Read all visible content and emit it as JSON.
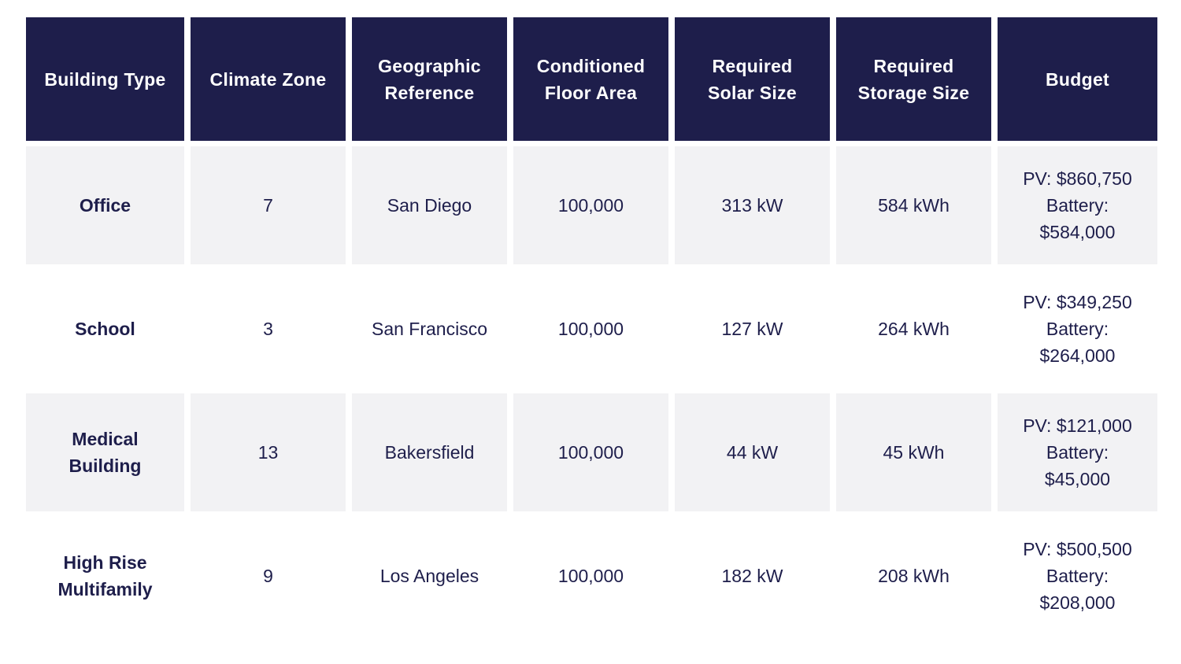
{
  "columns": [
    "Building Type",
    "Climate Zone",
    "Geographic\nReference",
    "Conditioned\nFloor Area",
    "Required\nSolar Size",
    "Required\nStorage Size",
    "Budget"
  ],
  "rows": [
    {
      "building_type": "Office",
      "climate_zone": "7",
      "geographic_reference": "San Diego",
      "floor_area": "100,000",
      "solar_size": "313 kW",
      "storage_size": "584 kWh",
      "budget": "PV: $860,750\nBattery:\n$584,000"
    },
    {
      "building_type": "School",
      "climate_zone": "3",
      "geographic_reference": "San Francisco",
      "floor_area": "100,000",
      "solar_size": "127 kW",
      "storage_size": "264 kWh",
      "budget": "PV: $349,250\nBattery:\n$264,000"
    },
    {
      "building_type": "Medical\nBuilding",
      "climate_zone": "13",
      "geographic_reference": "Bakersfield",
      "floor_area": "100,000",
      "solar_size": "44 kW",
      "storage_size": "45 kWh",
      "budget": "PV: $121,000\nBattery:\n$45,000"
    },
    {
      "building_type": "High Rise\nMultifamily",
      "climate_zone": "9",
      "geographic_reference": "Los Angeles",
      "floor_area": "100,000",
      "solar_size": "182 kW",
      "storage_size": "208 kWh",
      "budget": "PV: $500,500\nBattery:\n$208,000"
    }
  ],
  "colors": {
    "header_bg": "#1e1e4b",
    "header_text": "#ffffff",
    "shaded_row_bg": "#f2f2f4",
    "body_text": "#1e1e4b"
  }
}
